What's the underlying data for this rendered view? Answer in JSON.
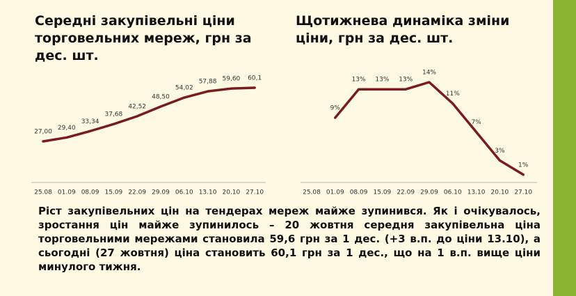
{
  "chart_data": [
    {
      "type": "line",
      "title": "Середні закупівельні ціни торговельних мереж, грн за дес. шт.",
      "categories": [
        "25.08",
        "01.09",
        "08.09",
        "15.09",
        "22.09",
        "29.09",
        "06.10",
        "13.10",
        "20.10",
        "27.10"
      ],
      "values": [
        27.0,
        29.4,
        33.34,
        37.68,
        42.52,
        48.5,
        54.02,
        57.88,
        59.6,
        60.1
      ],
      "value_labels": [
        "27,00",
        "29,40",
        "33,34",
        "37,68",
        "42,52",
        "48,50",
        "54,02",
        "57,88",
        "59,60",
        "60,1"
      ],
      "color": "#7a1c1c"
    },
    {
      "type": "line",
      "title": "Щотижнева динаміка зміни ціни, грн за дес. шт.",
      "categories": [
        "25.08",
        "01.09",
        "08.09",
        "15.09",
        "22.09",
        "29.09",
        "06.10",
        "13.10",
        "20.10",
        "27.10"
      ],
      "values": [
        null,
        9,
        13,
        13,
        13,
        14,
        11,
        7,
        3,
        1
      ],
      "value_labels": [
        null,
        "9%",
        "13%",
        "13%",
        "13%",
        "14%",
        "11%",
        "7%",
        "3%",
        "1%"
      ],
      "color": "#7a1c1c"
    }
  ],
  "paragraph": "Ріст закупівельних цін на тендерах мереж майже зупинився. Як і очікувалось, зростання цін майже зупинилось – 20 жовтня середня закупівельна ціна торговельними мережами становила 59,6 грн за 1 дес. (+3 в.п. до ціни 13.10), а сьогодні (27 жовтня) ціна становить 60,1 грн за 1 дес., що на 1 в.п. вище ціни минулого тижня."
}
